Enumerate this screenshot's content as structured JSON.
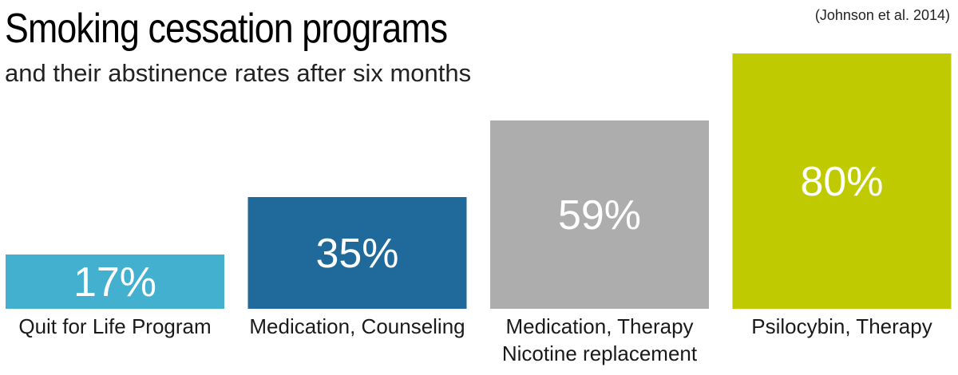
{
  "chart_data": {
    "type": "bar",
    "title": "Smoking cessation programs",
    "subtitle": "and their abstinence rates after six months",
    "source": "(Johnson et al. 2014)",
    "xlabel": "",
    "ylabel": "",
    "ylim": [
      0,
      100
    ],
    "grid": false,
    "legend": "none",
    "categories": [
      [
        "Quit for Life Program"
      ],
      [
        "Medication, Counseling"
      ],
      [
        "Medication, Therapy",
        "Nicotine replacement"
      ],
      [
        "Psilocybin, Therapy"
      ]
    ],
    "values": [
      17,
      35,
      59,
      80
    ],
    "value_labels": [
      "17%",
      "35%",
      "59%",
      "80%"
    ],
    "colors": [
      "#44b0cf",
      "#1f6a9a",
      "#adadad",
      "#bfca00"
    ]
  }
}
